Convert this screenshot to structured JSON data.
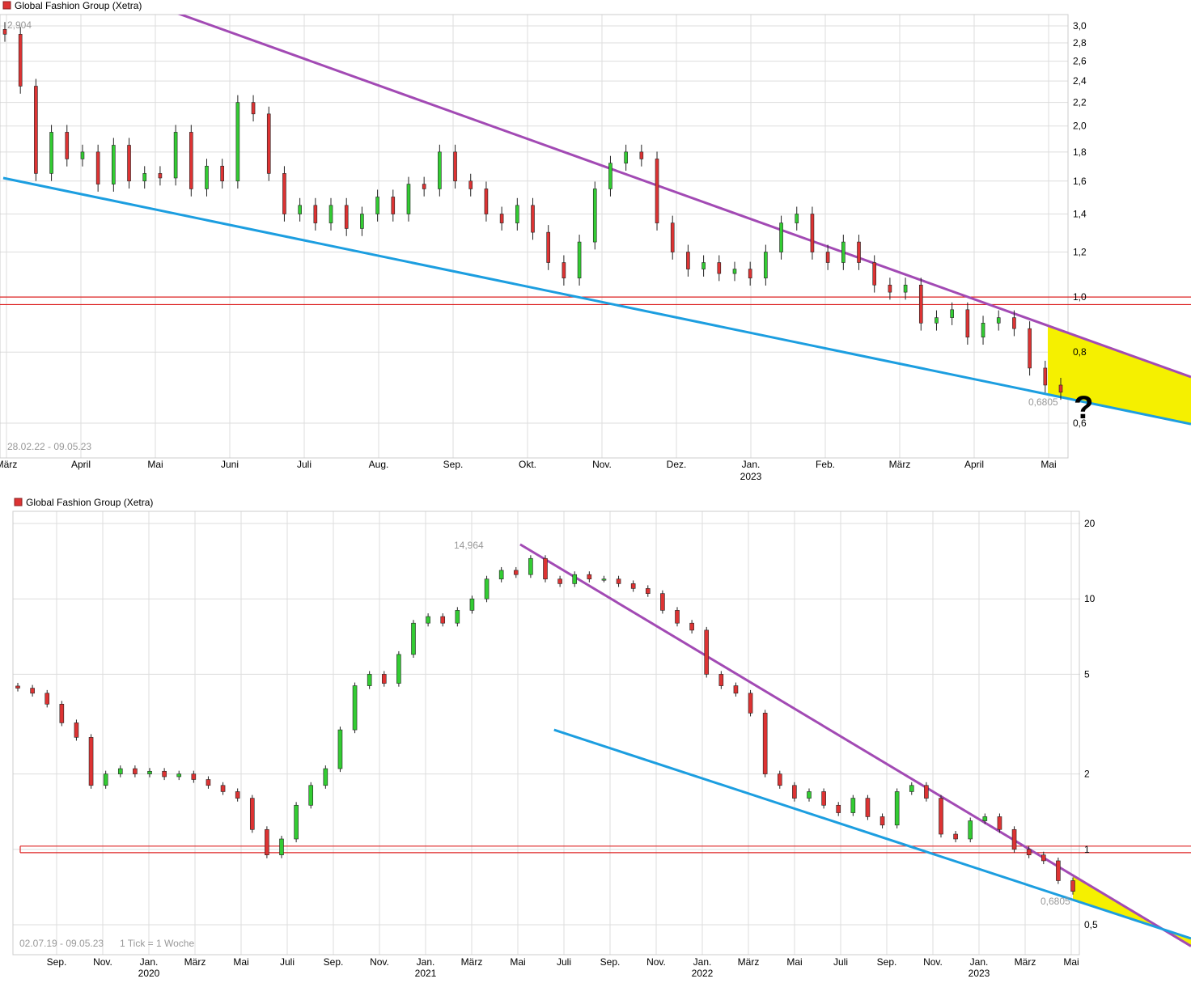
{
  "colors": {
    "up": "#33cc33",
    "down": "#dd3333",
    "upper_trend": "#a24ab4",
    "lower_trend": "#1c9ee0",
    "support": "#dd2222",
    "wedge": "#f5f000",
    "grid": "#dddddd"
  },
  "chart_data": [
    {
      "type": "candlestick",
      "title": "Global Fashion Group (Xetra)",
      "range_label": "28.02.22 - 09.05.23",
      "high_label": "2,904",
      "last_label": "0,6805",
      "annotation": "?",
      "y_scale": "log",
      "ylim": [
        0.58,
        3.05
      ],
      "y_ticks": [
        "3,0",
        "2,8",
        "2,6",
        "2,4",
        "2,2",
        "2,0",
        "1,8",
        "1,6",
        "1,4",
        "1,2",
        "1,0",
        "0,8",
        "0,6"
      ],
      "y_tick_values": [
        3.0,
        2.8,
        2.6,
        2.4,
        2.2,
        2.0,
        1.8,
        1.6,
        1.4,
        1.2,
        1.0,
        0.8,
        0.6
      ],
      "x_ticks": [
        "März",
        "April",
        "Mai",
        "Juni",
        "Juli",
        "Aug.",
        "Sep.",
        "Okt.",
        "Nov.",
        "Dez.",
        "Jan.",
        "Feb.",
        "März",
        "April",
        "Mai"
      ],
      "x_tick_years": {
        "10": "2023"
      },
      "x_range": [
        "2022-02-28",
        "2023-05-09"
      ],
      "approx_closes": [
        2.9,
        2.35,
        1.65,
        1.95,
        1.75,
        1.8,
        1.58,
        1.85,
        1.6,
        1.65,
        1.62,
        1.95,
        1.55,
        1.7,
        1.6,
        2.2,
        2.1,
        1.65,
        1.4,
        1.45,
        1.35,
        1.45,
        1.32,
        1.4,
        1.5,
        1.4,
        1.58,
        1.55,
        1.8,
        1.6,
        1.55,
        1.4,
        1.35,
        1.45,
        1.3,
        1.15,
        1.08,
        1.25,
        1.55,
        1.72,
        1.8,
        1.75,
        1.35,
        1.2,
        1.12,
        1.15,
        1.1,
        1.12,
        1.08,
        1.2,
        1.35,
        1.4,
        1.2,
        1.15,
        1.25,
        1.15,
        1.05,
        1.02,
        1.05,
        0.9,
        0.92,
        0.95,
        0.85,
        0.9,
        0.92,
        0.88,
        0.75,
        0.7,
        0.68
      ],
      "support_band": [
        0.97,
        1.0
      ],
      "upper_trendline": [
        [
          "2022-04-28",
          3.3
        ],
        [
          "2023-05-09",
          0.87
        ]
      ],
      "lower_trendline": [
        [
          "2022-02-28",
          1.62
        ],
        [
          "2023-05-09",
          0.665
        ]
      ]
    },
    {
      "type": "candlestick",
      "title": "Global Fashion Group (Xetra)",
      "range_label": "02.07.19 - 09.05.23",
      "tick_label": "1 Tick = 1 Woche",
      "high_label": "14,964",
      "last_label": "0,6805",
      "y_scale": "log",
      "ylim": [
        0.45,
        23
      ],
      "y_ticks": [
        "20",
        "10",
        "5",
        "2",
        "1",
        "0,5"
      ],
      "y_tick_values": [
        20,
        10,
        5,
        2,
        1,
        0.5
      ],
      "x_ticks": [
        "Sep.",
        "Nov.",
        "Jan.",
        "März",
        "Mai",
        "Juli",
        "Sep.",
        "Nov.",
        "Jan.",
        "März",
        "Mai",
        "Juli",
        "Sep.",
        "Nov.",
        "Jan.",
        "März",
        "Mai",
        "Juli",
        "Sep.",
        "Nov.",
        "Jan.",
        "März",
        "Mai"
      ],
      "x_tick_years": {
        "2": "2020",
        "8": "2021",
        "14": "2022",
        "20": "2023"
      },
      "x_range": [
        "2019-07-02",
        "2023-05-09"
      ],
      "approx_closes": [
        4.4,
        4.2,
        3.8,
        3.2,
        2.8,
        1.8,
        2.0,
        2.1,
        2.0,
        2.05,
        1.95,
        2.0,
        1.9,
        1.8,
        1.7,
        1.6,
        1.2,
        0.95,
        1.1,
        1.5,
        1.8,
        2.1,
        3.0,
        4.5,
        5.0,
        4.6,
        6.0,
        8.0,
        8.5,
        8.0,
        9.0,
        10.0,
        12.0,
        13.0,
        12.5,
        14.5,
        12.0,
        11.5,
        12.5,
        12.0,
        12.0,
        11.5,
        11.0,
        10.5,
        9.0,
        8.0,
        7.5,
        5.0,
        4.5,
        4.2,
        3.5,
        2.0,
        1.8,
        1.6,
        1.7,
        1.5,
        1.4,
        1.6,
        1.35,
        1.25,
        1.7,
        1.8,
        1.6,
        1.15,
        1.1,
        1.3,
        1.35,
        1.2,
        1.0,
        0.95,
        0.9,
        0.75,
        0.68
      ],
      "support_band": [
        0.97,
        1.03
      ],
      "upper_trendline": [
        [
          "2021-05-01",
          16.5
        ],
        [
          "2023-09-01",
          0.48
        ]
      ],
      "lower_trendline": [
        [
          "2021-06-15",
          3.0
        ],
        [
          "2023-09-01",
          0.48
        ]
      ]
    }
  ]
}
